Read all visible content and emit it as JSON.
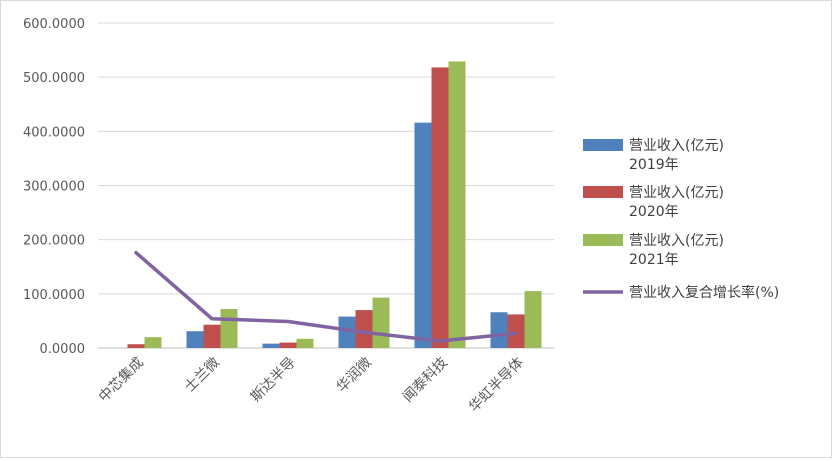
{
  "chart_data": {
    "type": "bar",
    "categories": [
      "中芯集成",
      "士兰微",
      "斯达半导",
      "华润微",
      "闻泰科技",
      "华虹半导体"
    ],
    "y_ticks": [
      "0.0000",
      "100.0000",
      "200.0000",
      "300.0000",
      "400.0000",
      "500.0000",
      "600.0000"
    ],
    "ylim": [
      0,
      600
    ],
    "grid": true,
    "legend_position": "right",
    "series": [
      {
        "name_line1": "营业收入(亿元)",
        "name_line2": "2019年",
        "type": "bar",
        "color": "#4f81bd",
        "values": [
          0,
          31,
          8,
          58,
          416,
          66
        ]
      },
      {
        "name_line1": "营业收入(亿元)",
        "name_line2": "2020年",
        "type": "bar",
        "color": "#c0504d",
        "values": [
          7,
          43,
          10,
          70,
          518,
          62
        ]
      },
      {
        "name_line1": "营业收入(亿元)",
        "name_line2": "2021年",
        "type": "bar",
        "color": "#9bbb59",
        "values": [
          20,
          72,
          17,
          93,
          529,
          105
        ]
      },
      {
        "name_line1": "营业收入复合增长率(%)",
        "name_line2": "",
        "type": "line",
        "color": "#8064a2",
        "values": [
          176,
          54,
          49,
          29,
          13,
          27
        ]
      }
    ]
  }
}
